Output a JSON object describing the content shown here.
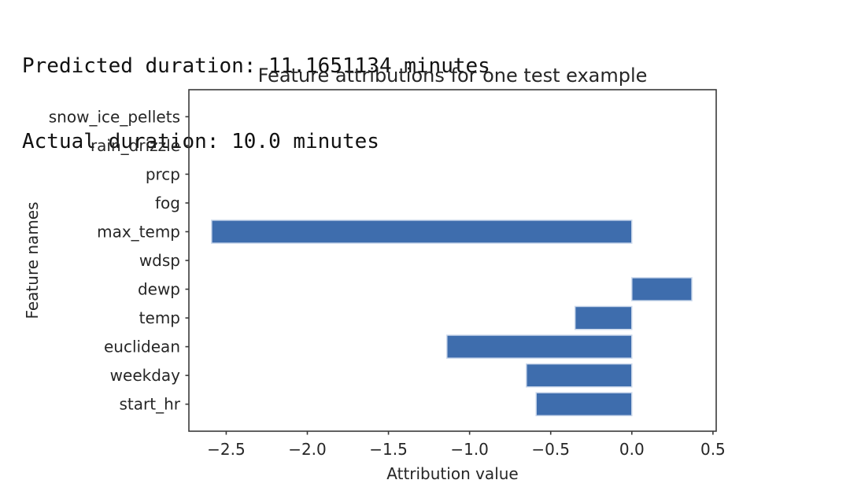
{
  "header": {
    "line1": "Predicted duration: 11.1651134 minutes",
    "line2": "Actual duration: 10.0 minutes"
  },
  "chart_data": {
    "type": "bar",
    "orientation": "horizontal",
    "title": "Feature attributions for one test example",
    "xlabel": "Attribution value",
    "ylabel": "Feature names",
    "categories_top_to_bottom": [
      "snow_ice_pellets",
      "rain_drizzle",
      "prcp",
      "fog",
      "max_temp",
      "wdsp",
      "dewp",
      "temp",
      "euclidean",
      "weekday",
      "start_hr"
    ],
    "values_top_to_bottom": [
      0,
      0,
      0,
      0,
      -2.59,
      0,
      0.37,
      -0.35,
      -1.14,
      -0.65,
      -0.59
    ],
    "xlim": [
      -2.73,
      0.52
    ],
    "xticks": [
      -2.5,
      -2.0,
      -1.5,
      -1.0,
      -0.5,
      0.0,
      0.5
    ],
    "xtick_labels": [
      "−2.5",
      "−2.0",
      "−1.5",
      "−1.0",
      "−0.5",
      "0.0",
      "0.5"
    ],
    "grid": false,
    "legend": "none",
    "bar_color": "#3e6dad",
    "bar_edge_color": "#ccd9ec",
    "spine_color": "#3a3a3a",
    "text_color": "#262626"
  }
}
